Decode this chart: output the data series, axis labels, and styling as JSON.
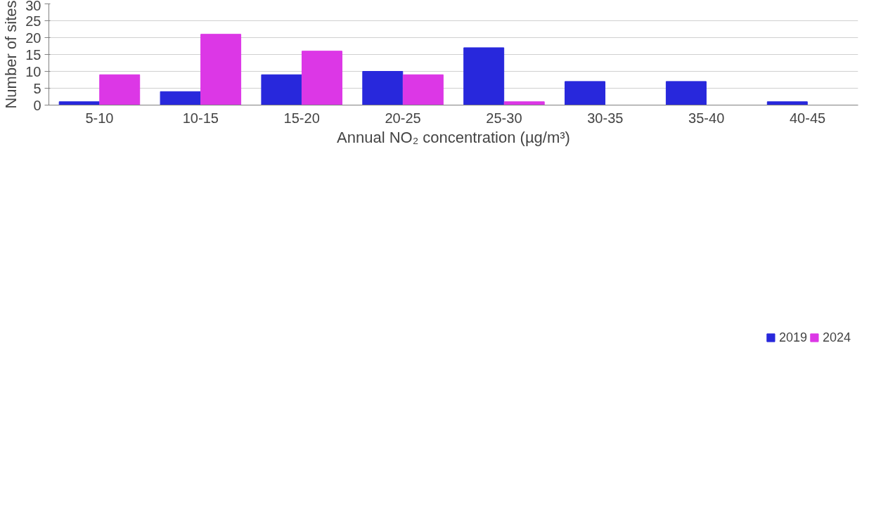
{
  "chart_data": {
    "type": "bar",
    "xlabel": "Annual NO₂ concentration (µg/m³)",
    "ylabel": "Number of sites",
    "categories": [
      "5-10",
      "10-15",
      "15-20",
      "20-25",
      "25-30",
      "30-35",
      "35-40",
      "40-45"
    ],
    "series": [
      {
        "name": "2019",
        "color": "#2828dc",
        "values": [
          1,
          4,
          9,
          10,
          17,
          7,
          7,
          1
        ]
      },
      {
        "name": "2024",
        "color": "#dc37e6",
        "values": [
          9,
          21,
          16,
          9,
          1,
          0,
          0,
          0
        ]
      }
    ],
    "ylim": [
      0,
      30
    ],
    "yticks": [
      0,
      5,
      10,
      15,
      20,
      25,
      30
    ],
    "grid": "y",
    "legend": "bottom"
  }
}
